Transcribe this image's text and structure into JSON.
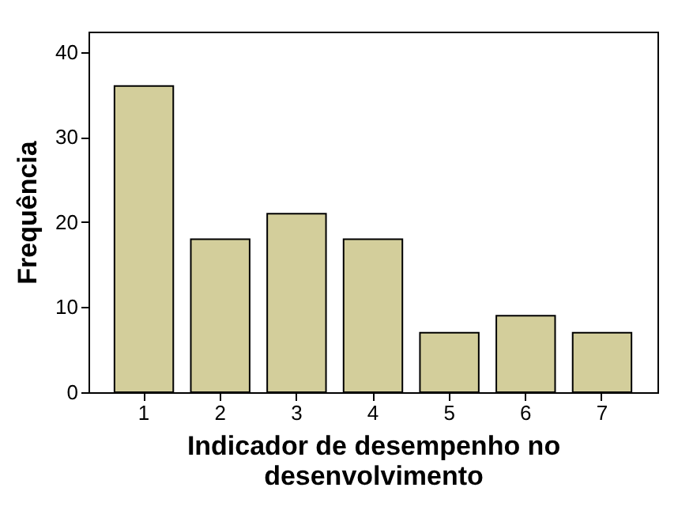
{
  "chart_data": {
    "type": "bar",
    "xlabel": "Indicador de desempenho no desenvolvimento",
    "ylabel": "Frequência",
    "categories": [
      "1",
      "2",
      "3",
      "4",
      "5",
      "6",
      "7"
    ],
    "values": [
      36,
      18,
      21,
      18,
      7,
      9,
      7
    ],
    "color": "#d3ce9b",
    "ylim": [
      0,
      42.4
    ],
    "yticks": [
      0,
      10,
      20,
      30,
      40
    ],
    "grid": false
  }
}
